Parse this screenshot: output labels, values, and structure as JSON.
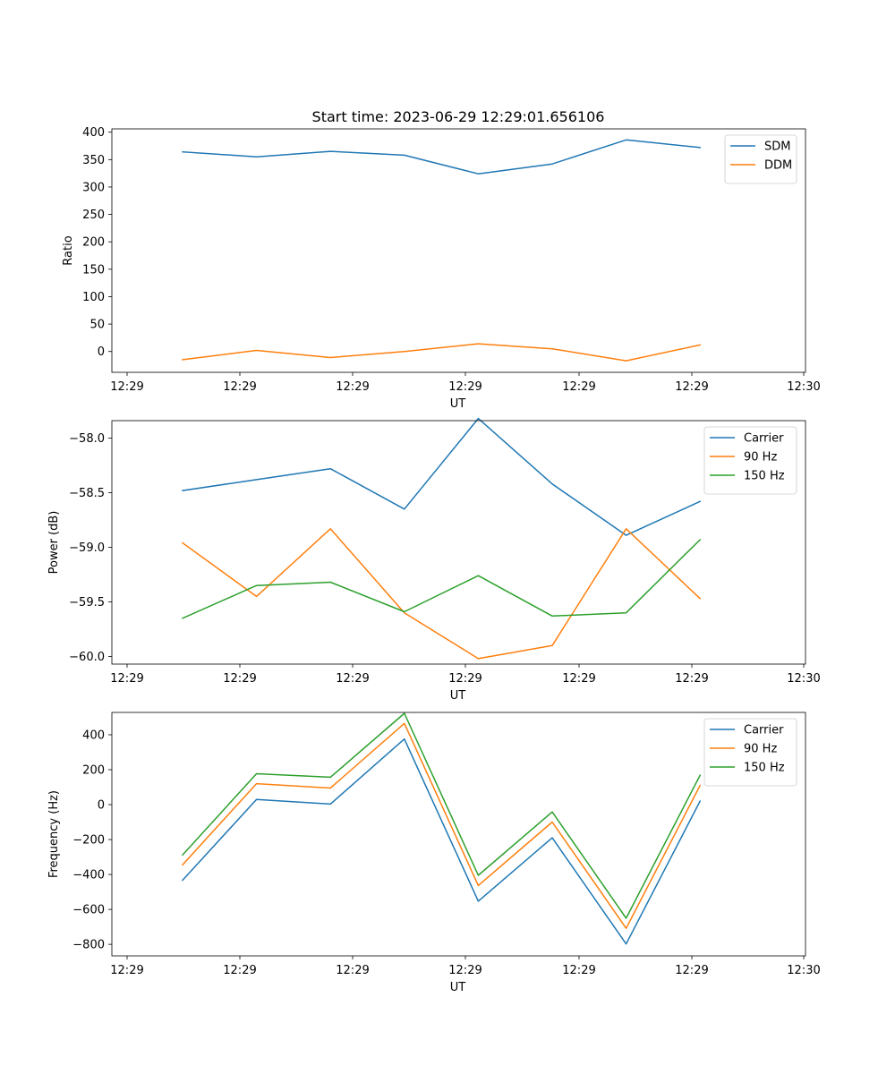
{
  "figure": {
    "title": "Start time: 2023-06-29 12:29:01.656106"
  },
  "colors": {
    "blue": "#1f77b4",
    "orange": "#ff7f0e",
    "green": "#2ca02c"
  },
  "chart_data": [
    {
      "type": "line",
      "title": "Start time: 2023-06-29 12:29:01.656106",
      "xlabel": "UT",
      "ylabel": "Ratio",
      "x_tick_labels": [
        "12:29",
        "12:29",
        "12:29",
        "12:29",
        "12:29",
        "12:29",
        "12:30"
      ],
      "y_ticks": [
        0,
        50,
        100,
        150,
        200,
        250,
        300,
        350,
        400
      ],
      "ylim": [
        -38,
        406
      ],
      "x_index": [
        1,
        2,
        3,
        4,
        5,
        6,
        7,
        8
      ],
      "legend_position": "top-right",
      "grid": false,
      "series": [
        {
          "name": "SDM",
          "color": "#1f77b4",
          "values": [
            364,
            355,
            365,
            358,
            324,
            342,
            386,
            372
          ]
        },
        {
          "name": "DDM",
          "color": "#ff7f0e",
          "values": [
            -15,
            2,
            -11,
            0,
            14,
            5,
            -17,
            12
          ]
        }
      ]
    },
    {
      "type": "line",
      "xlabel": "UT",
      "ylabel": "Power (dB)",
      "x_tick_labels": [
        "12:29",
        "12:29",
        "12:29",
        "12:29",
        "12:29",
        "12:29",
        "12:30"
      ],
      "y_ticks": [
        -60.0,
        -59.5,
        -59.0,
        -58.5,
        -58.0
      ],
      "y_tick_labels": [
        "−60.0",
        "−59.5",
        "−59.0",
        "−58.5",
        "−58.0"
      ],
      "ylim": [
        -60.07,
        -57.84
      ],
      "x_index": [
        1,
        2,
        3,
        4,
        5,
        6,
        7,
        8
      ],
      "legend_position": "top-right",
      "grid": false,
      "series": [
        {
          "name": "Carrier",
          "color": "#1f77b4",
          "values": [
            -58.48,
            -58.38,
            -58.28,
            -58.65,
            -57.82,
            -58.42,
            -58.89,
            -58.58
          ]
        },
        {
          "name": "90 Hz",
          "color": "#ff7f0e",
          "values": [
            -58.96,
            -59.45,
            -58.83,
            -59.6,
            -60.02,
            -59.9,
            -58.83,
            -59.47
          ]
        },
        {
          "name": "150 Hz",
          "color": "#2ca02c",
          "values": [
            -59.65,
            -59.35,
            -59.32,
            -59.59,
            -59.26,
            -59.63,
            -59.6,
            -58.93
          ]
        }
      ]
    },
    {
      "type": "line",
      "xlabel": "UT",
      "ylabel": "Frequency (Hz)",
      "x_tick_labels": [
        "12:29",
        "12:29",
        "12:29",
        "12:29",
        "12:29",
        "12:29",
        "12:30"
      ],
      "y_ticks": [
        -800,
        -600,
        -400,
        -200,
        0,
        200,
        400
      ],
      "y_tick_labels": [
        "−800",
        "−600",
        "−400",
        "−200",
        "0",
        "200",
        "400"
      ],
      "ylim": [
        -866,
        528
      ],
      "x_index": [
        1,
        2,
        3,
        4,
        5,
        6,
        7,
        8
      ],
      "legend_position": "top-right",
      "grid": false,
      "series": [
        {
          "name": "Carrier",
          "color": "#1f77b4",
          "values": [
            -433,
            30,
            3,
            376,
            -553,
            -190,
            -798,
            20
          ]
        },
        {
          "name": "90 Hz",
          "color": "#ff7f0e",
          "values": [
            -345,
            120,
            95,
            465,
            -463,
            -100,
            -708,
            110
          ]
        },
        {
          "name": "150 Hz",
          "color": "#2ca02c",
          "values": [
            -288,
            177,
            157,
            523,
            -405,
            -42,
            -650,
            168
          ]
        }
      ]
    }
  ]
}
